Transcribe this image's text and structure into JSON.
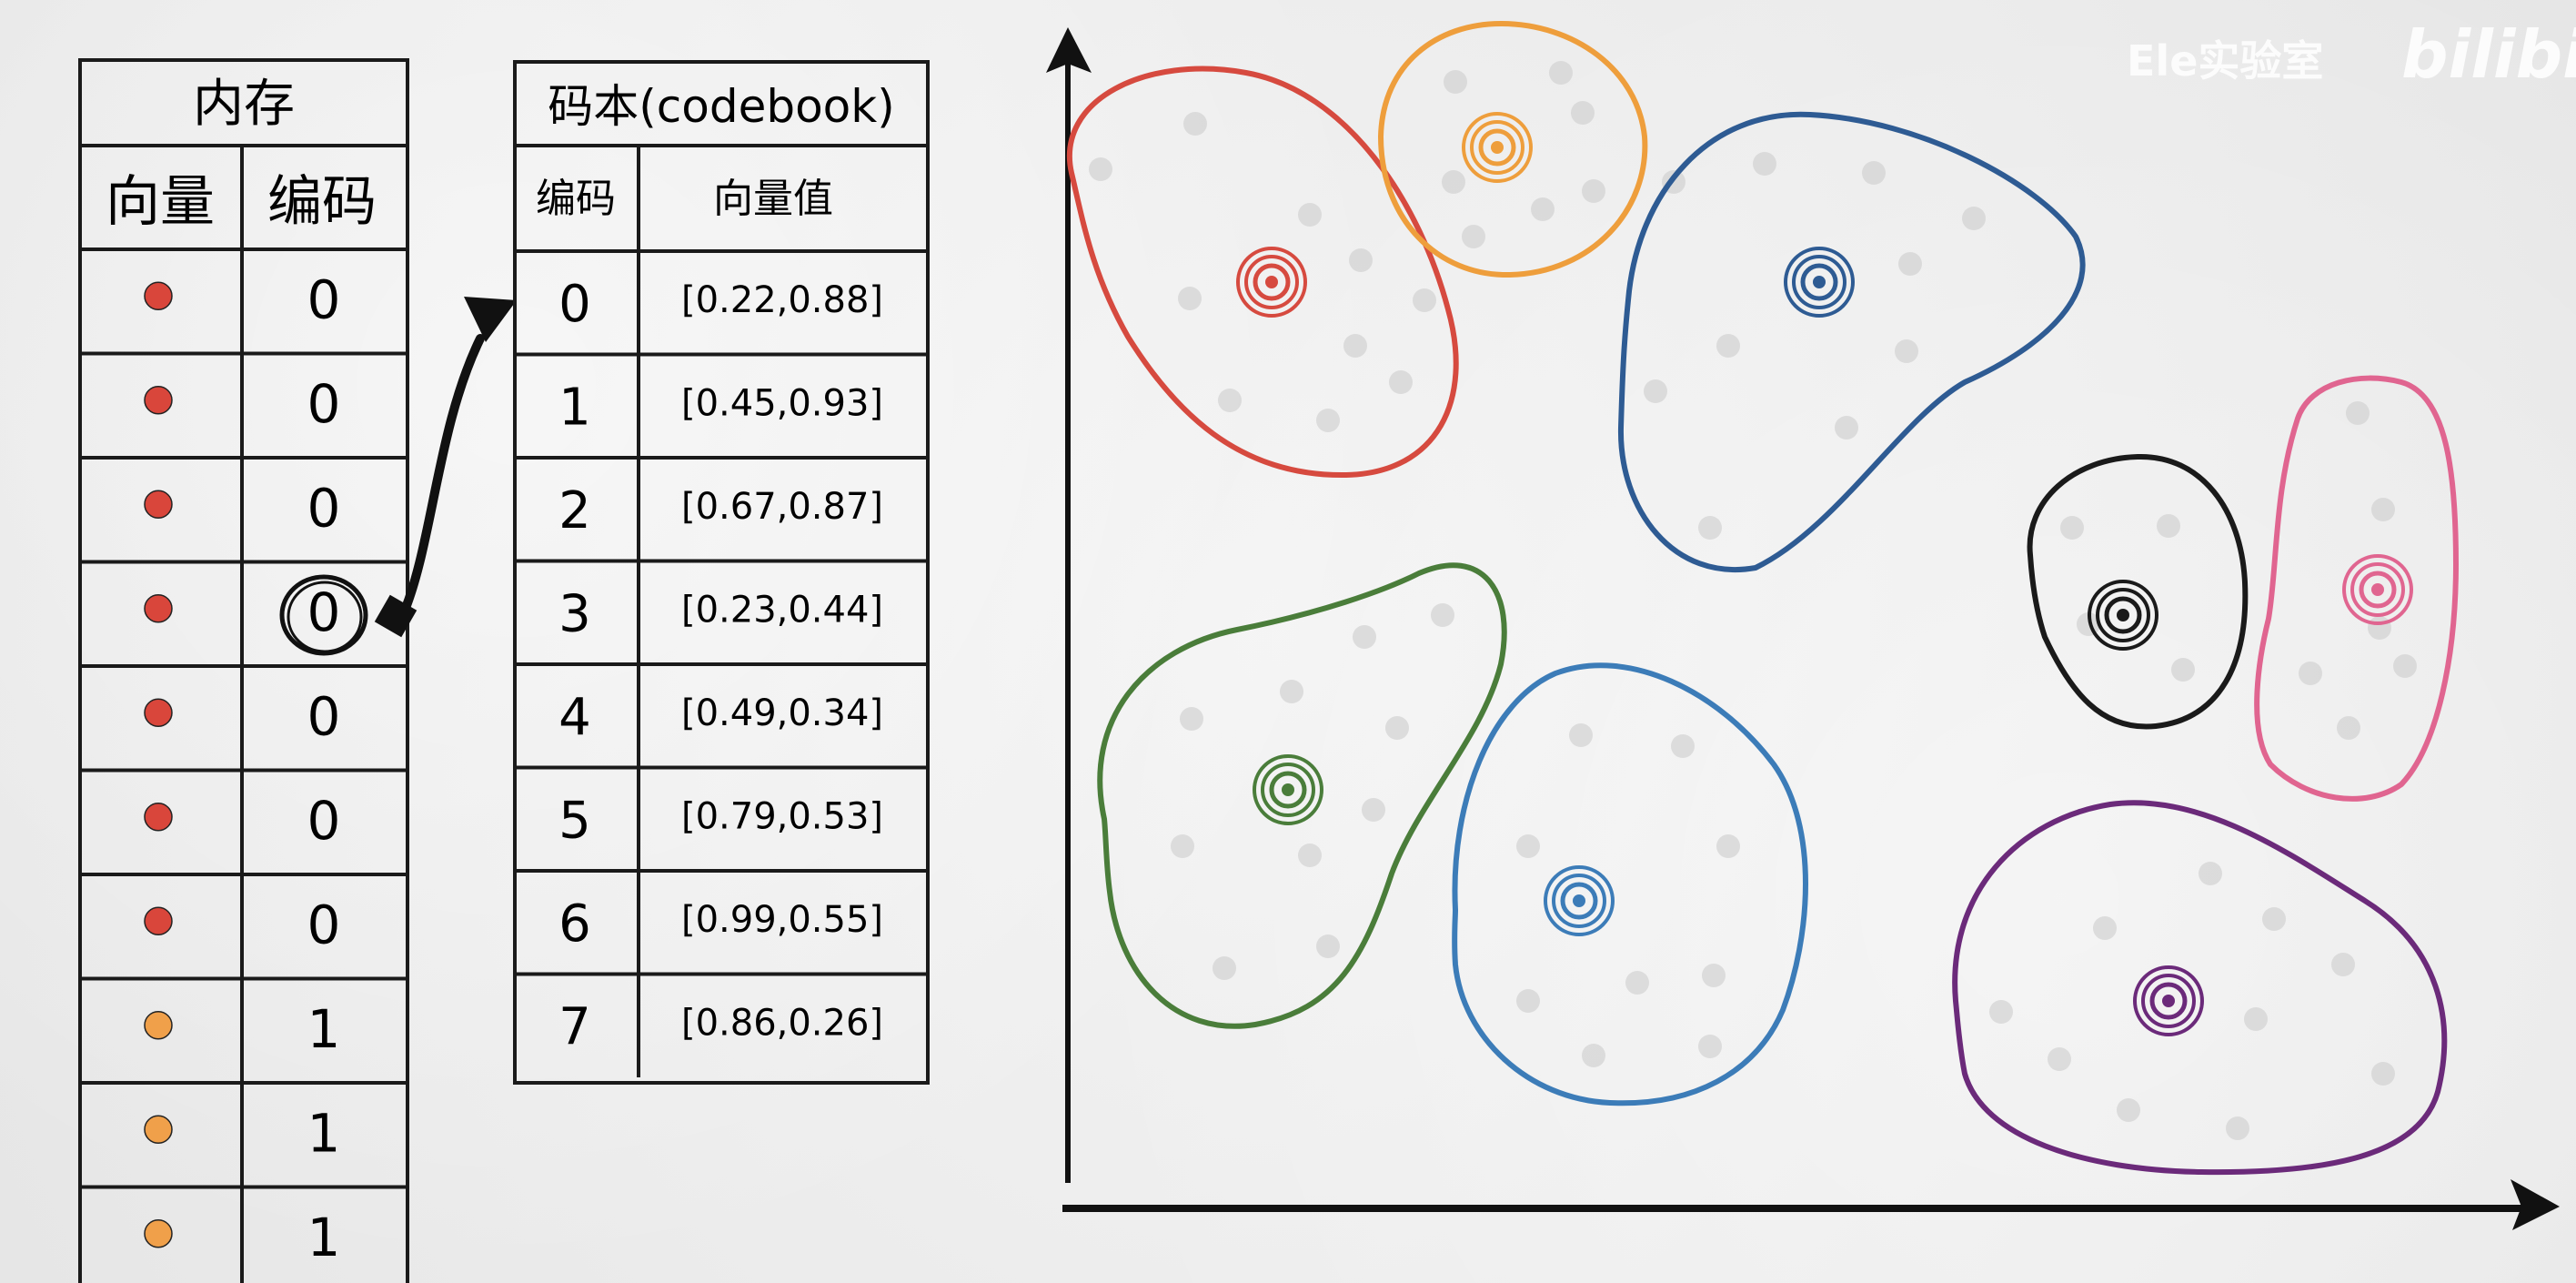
{
  "watermark": {
    "channel": "Ele实验室",
    "site": "bilibili"
  },
  "memory_table": {
    "title": "内存",
    "col_vector": "向量",
    "col_code": "编码",
    "rows": [
      {
        "color": "#d9463b",
        "code": "0"
      },
      {
        "color": "#d9463b",
        "code": "0"
      },
      {
        "color": "#d9463b",
        "code": "0"
      },
      {
        "color": "#d9463b",
        "code": "0",
        "highlight": true
      },
      {
        "color": "#d9463b",
        "code": "0"
      },
      {
        "color": "#d9463b",
        "code": "0"
      },
      {
        "color": "#d9463b",
        "code": "0"
      },
      {
        "color": "#f0a04a",
        "code": "1"
      },
      {
        "color": "#f0a04a",
        "code": "1"
      },
      {
        "color": "#f0a04a",
        "code": "1"
      }
    ]
  },
  "codebook_table": {
    "title": "码本(codebook)",
    "col_code": "编码",
    "col_vector": "向量值",
    "rows": [
      {
        "code": "0",
        "value": "[0.22,0.88]"
      },
      {
        "code": "1",
        "value": "[0.45,0.93]"
      },
      {
        "code": "2",
        "value": "[0.67,0.87]"
      },
      {
        "code": "3",
        "value": "[0.23,0.44]"
      },
      {
        "code": "4",
        "value": "[0.49,0.34]"
      },
      {
        "code": "5",
        "value": "[0.79,0.53]"
      },
      {
        "code": "6",
        "value": "[0.99,0.55]"
      },
      {
        "code": "7",
        "value": "[0.86,0.26]"
      }
    ]
  },
  "clusters": [
    {
      "name": "red",
      "color": "#d64a3f"
    },
    {
      "name": "orange",
      "color": "#ee9e3c"
    },
    {
      "name": "dark-blue",
      "color": "#2e5b93"
    },
    {
      "name": "green",
      "color": "#4a7d3a"
    },
    {
      "name": "light-blue",
      "color": "#3c7cb8"
    },
    {
      "name": "black",
      "color": "#1a1a1a"
    },
    {
      "name": "pink",
      "color": "#e06590"
    },
    {
      "name": "purple",
      "color": "#6b2a7a"
    }
  ]
}
